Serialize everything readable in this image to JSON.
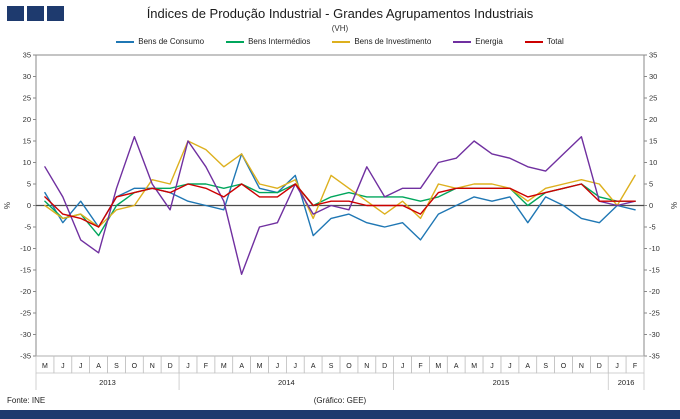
{
  "chart_data": {
    "type": "line",
    "title": "Índices de Produção Industrial - Grandes Agrupamentos Industriais",
    "subtitle": "(VH)",
    "ylabel": "%",
    "ylim": [
      -35,
      35
    ],
    "ytick": 5,
    "grid": "zero-line-only",
    "legend_position": "top",
    "categories": [
      "M",
      "J",
      "J",
      "A",
      "S",
      "O",
      "N",
      "D",
      "J",
      "F",
      "M",
      "A",
      "M",
      "J",
      "J",
      "A",
      "S",
      "O",
      "N",
      "D",
      "J",
      "F",
      "M",
      "A",
      "M",
      "J",
      "J",
      "A",
      "S",
      "O",
      "N",
      "D",
      "J",
      "F"
    ],
    "year_groups": [
      {
        "label": "2013",
        "start": 0,
        "count": 8
      },
      {
        "label": "2014",
        "start": 8,
        "count": 12
      },
      {
        "label": "2015",
        "start": 20,
        "count": 12
      },
      {
        "label": "2016",
        "start": 32,
        "count": 2
      }
    ],
    "series": [
      {
        "id": "bens-de-consumo",
        "name": "Bens de Consumo",
        "color": "#1F77B4",
        "values": [
          3,
          -4,
          1,
          -5,
          2,
          4,
          4,
          3,
          1,
          0,
          -1,
          12,
          4,
          3,
          7,
          -7,
          -3,
          -2,
          -4,
          -5,
          -4,
          -8,
          -2,
          0,
          2,
          1,
          2,
          -4,
          2,
          0,
          -3,
          -4,
          0,
          -1
        ]
      },
      {
        "id": "bens-intermedios",
        "name": "Bens Intermédios",
        "color": "#00A65C",
        "values": [
          1,
          -3,
          -2,
          -7,
          0,
          3,
          4,
          4,
          5,
          5,
          4,
          5,
          3,
          3,
          5,
          0,
          2,
          3,
          2,
          2,
          2,
          1,
          2,
          4,
          4,
          4,
          4,
          0,
          3,
          4,
          5,
          2,
          1,
          1
        ]
      },
      {
        "id": "bens-de-investimento",
        "name": "Bens de Investimento",
        "color": "#DDB01E",
        "values": [
          0,
          -3,
          -2,
          -5,
          -1,
          0,
          6,
          5,
          15,
          13,
          9,
          12,
          5,
          4,
          6,
          -3,
          7,
          4,
          1,
          -2,
          1,
          -3,
          5,
          4,
          5,
          5,
          4,
          1,
          4,
          5,
          6,
          5,
          0,
          7
        ]
      },
      {
        "id": "energia",
        "name": "Energia",
        "color": "#7030A0",
        "values": [
          9,
          2,
          -8,
          -11,
          4,
          16,
          5,
          -1,
          15,
          9,
          1,
          -16,
          -5,
          -4,
          5,
          -2,
          0,
          -1,
          9,
          2,
          4,
          4,
          10,
          11,
          15,
          12,
          11,
          9,
          8,
          12,
          16,
          1,
          0,
          1
        ]
      },
      {
        "id": "total",
        "name": "Total",
        "color": "#CC0000",
        "values": [
          2,
          -2,
          -3,
          -5,
          2,
          3,
          4,
          3,
          5,
          4,
          2,
          5,
          2,
          2,
          5,
          0,
          1,
          1,
          0,
          0,
          0,
          -2,
          3,
          4,
          4,
          4,
          4,
          2,
          3,
          4,
          5,
          1,
          1,
          1
        ]
      }
    ]
  },
  "footer": {
    "source": "Fonte: INE",
    "credit": "(Gráfico: GEE)"
  },
  "colors": {
    "accent_navy": "#1E3A6E",
    "frame_gray": "#8a8a8a",
    "cell_gray": "#bfbfbf"
  }
}
